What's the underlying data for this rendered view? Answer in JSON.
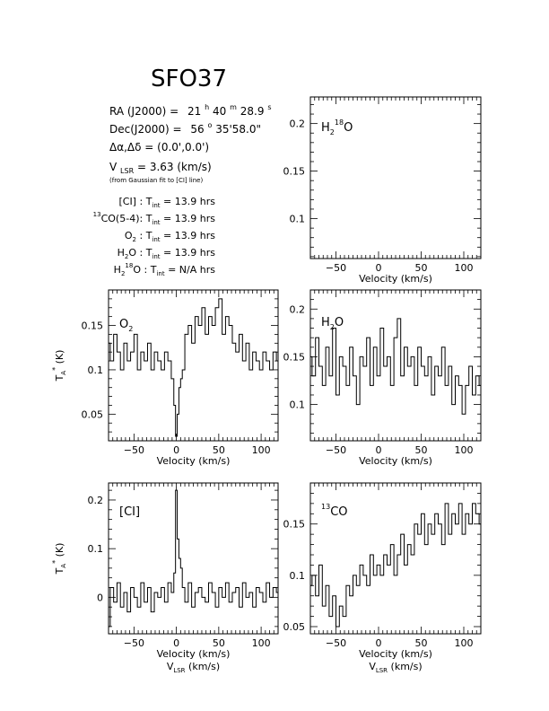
{
  "header": {
    "title": "SFO37",
    "ra": {
      "label": "RA (J2000) =",
      "h": "21",
      "hu": "h",
      "m": "40",
      "mu": "m",
      "s": "28.9",
      "su": "s"
    },
    "dec": {
      "label": "Dec(J2000) =",
      "deg": "56",
      "degu": "o",
      "rest": "35'58.0\""
    },
    "offset": {
      "text": "Δα,Δδ = (0.0',0.0')"
    },
    "vlsr": {
      "v": "V",
      "sub": "LSR",
      "rest": " = 3.63 (km/s)",
      "note": "(from Gaussian fit to [CI] line)"
    },
    "tint": [
      {
        "pre": "",
        "sup": "",
        "name": "[CI]",
        "sub": "",
        "post": " : ",
        "t": "T",
        "tsub": "int",
        "value": " = 13.9 hrs"
      },
      {
        "pre": "",
        "sup": "13",
        "name": "CO(5-4)",
        "sub": "",
        "post": ": ",
        "t": "T",
        "tsub": "int",
        "value": " = 13.9 hrs"
      },
      {
        "pre": "",
        "sup": "",
        "name": "O",
        "sub": "2",
        "post": " : ",
        "t": "T",
        "tsub": "int",
        "value": " = 13.9 hrs"
      },
      {
        "pre": "",
        "sup": "",
        "name": "H",
        "sub": "2",
        "post": "O : ",
        "t": "T",
        "tsub": "int",
        "value": " = 13.9 hrs"
      },
      {
        "pre": "H",
        "sup": "18",
        "name": "O",
        "sub": "2",
        "post": " : ",
        "t": "T",
        "tsub": "int",
        "value": " = N/A hrs"
      }
    ]
  },
  "axis_text": {
    "xlabel": "Velocity (km/s)",
    "vlsr_main": "V",
    "vlsr_sub": "LSR",
    "vlsr_rest": " (km/s)",
    "ylabel_main": "T",
    "ylabel_sub": "A",
    "ylabel_sup": "*",
    "ylabel_rest": " (K)"
  },
  "chart_data": [
    {
      "id": "h2-18o",
      "type": "line",
      "label": {
        "a": "H",
        "sub": "2",
        "sup": "18",
        "b": "O"
      },
      "xlim": [
        -80,
        120
      ],
      "ylim": [
        0.058,
        0.228
      ],
      "xticks": [
        -50,
        0,
        50,
        100
      ],
      "yticks": [
        0.1,
        0.15,
        0.2
      ],
      "ytick_labels": [
        "0.1",
        "0.15",
        "0.2"
      ],
      "x": [],
      "y": []
    },
    {
      "id": "o2",
      "type": "line",
      "label": {
        "a": "O",
        "sub": "2",
        "sup": "",
        "b": ""
      },
      "xlim": [
        -80,
        120
      ],
      "ylim": [
        0.02,
        0.19
      ],
      "xticks": [
        -50,
        0,
        50,
        100
      ],
      "yticks": [
        0.05,
        0.1,
        0.15
      ],
      "ytick_labels": [
        "0.05",
        "0.1",
        "0.15"
      ],
      "x": [
        -80,
        -76,
        -72,
        -68,
        -64,
        -60,
        -56,
        -52,
        -48,
        -44,
        -40,
        -36,
        -32,
        -28,
        -24,
        -20,
        -16,
        -12,
        -8,
        -4,
        -2,
        0,
        2,
        4,
        6,
        8,
        12,
        16,
        20,
        24,
        28,
        32,
        36,
        40,
        44,
        48,
        52,
        56,
        60,
        64,
        68,
        72,
        76,
        80,
        84,
        88,
        92,
        96,
        100,
        104,
        108,
        112,
        116,
        120
      ],
      "y": [
        0.13,
        0.11,
        0.14,
        0.12,
        0.1,
        0.13,
        0.11,
        0.12,
        0.14,
        0.1,
        0.12,
        0.11,
        0.13,
        0.1,
        0.12,
        0.11,
        0.1,
        0.12,
        0.11,
        0.09,
        0.06,
        0.025,
        0.05,
        0.08,
        0.09,
        0.1,
        0.14,
        0.15,
        0.13,
        0.16,
        0.15,
        0.17,
        0.14,
        0.16,
        0.15,
        0.17,
        0.18,
        0.14,
        0.16,
        0.15,
        0.13,
        0.12,
        0.14,
        0.11,
        0.13,
        0.1,
        0.12,
        0.11,
        0.1,
        0.12,
        0.11,
        0.1,
        0.12,
        0.11
      ]
    },
    {
      "id": "h2o",
      "type": "line",
      "label": {
        "a": "H",
        "sub": "2",
        "sup": "",
        "b": "O"
      },
      "xlim": [
        -80,
        120
      ],
      "ylim": [
        0.062,
        0.22
      ],
      "xticks": [
        -50,
        0,
        50,
        100
      ],
      "yticks": [
        0.1,
        0.15,
        0.2
      ],
      "ytick_labels": [
        "0.1",
        "0.15",
        "0.2"
      ],
      "x": [
        -80,
        -76,
        -72,
        -68,
        -64,
        -60,
        -56,
        -52,
        -48,
        -44,
        -40,
        -36,
        -32,
        -28,
        -24,
        -20,
        -16,
        -12,
        -8,
        -4,
        0,
        4,
        8,
        12,
        16,
        20,
        24,
        28,
        32,
        36,
        40,
        44,
        48,
        52,
        56,
        60,
        64,
        68,
        72,
        76,
        80,
        84,
        88,
        92,
        96,
        100,
        104,
        108,
        112,
        116,
        120
      ],
      "y": [
        0.15,
        0.13,
        0.17,
        0.14,
        0.12,
        0.16,
        0.13,
        0.18,
        0.11,
        0.15,
        0.14,
        0.12,
        0.16,
        0.13,
        0.1,
        0.15,
        0.14,
        0.17,
        0.12,
        0.16,
        0.13,
        0.18,
        0.14,
        0.15,
        0.12,
        0.17,
        0.19,
        0.13,
        0.16,
        0.14,
        0.15,
        0.12,
        0.16,
        0.14,
        0.13,
        0.15,
        0.11,
        0.14,
        0.13,
        0.16,
        0.12,
        0.14,
        0.1,
        0.13,
        0.12,
        0.09,
        0.12,
        0.14,
        0.11,
        0.13,
        0.12
      ]
    },
    {
      "id": "ci",
      "type": "line",
      "label": {
        "a": "[CI]",
        "sub": "",
        "sup": "",
        "b": ""
      },
      "xlim": [
        -80,
        120
      ],
      "ylim": [
        -0.075,
        0.235
      ],
      "xticks": [
        -50,
        0,
        50,
        100
      ],
      "yticks": [
        0,
        0.1,
        0.2
      ],
      "ytick_labels": [
        "0",
        "0.1",
        "0.2"
      ],
      "x": [
        -80,
        -76,
        -72,
        -68,
        -64,
        -60,
        -56,
        -52,
        -48,
        -44,
        -40,
        -36,
        -32,
        -28,
        -24,
        -20,
        -16,
        -12,
        -8,
        -4,
        -2,
        0,
        2,
        4,
        6,
        8,
        12,
        16,
        20,
        24,
        28,
        32,
        36,
        40,
        44,
        48,
        52,
        56,
        60,
        64,
        68,
        72,
        76,
        80,
        84,
        88,
        92,
        96,
        100,
        104,
        108,
        112,
        116,
        120
      ],
      "y": [
        -0.06,
        0.02,
        -0.01,
        0.03,
        -0.02,
        0.01,
        -0.03,
        0.02,
        0.0,
        -0.02,
        0.03,
        -0.01,
        0.02,
        -0.03,
        0.01,
        0.0,
        0.02,
        -0.01,
        0.03,
        0.01,
        0.05,
        0.22,
        0.12,
        0.08,
        0.06,
        0.02,
        -0.01,
        0.03,
        -0.02,
        0.01,
        0.02,
        0.0,
        -0.01,
        0.03,
        0.01,
        -0.02,
        0.02,
        0.0,
        0.03,
        -0.01,
        0.01,
        0.02,
        -0.02,
        0.03,
        0.0,
        0.01,
        -0.02,
        0.02,
        0.01,
        -0.01,
        0.03,
        0.0,
        0.02,
        0.01
      ]
    },
    {
      "id": "13co",
      "type": "line",
      "label": {
        "a": "",
        "sub": "",
        "sup": "13",
        "b": "CO"
      },
      "xlim": [
        -80,
        120
      ],
      "ylim": [
        0.043,
        0.19
      ],
      "xticks": [
        -50,
        0,
        50,
        100
      ],
      "yticks": [
        0.05,
        0.1,
        0.15
      ],
      "ytick_labels": [
        "0.05",
        "0.1",
        "0.15"
      ],
      "x": [
        -80,
        -76,
        -72,
        -68,
        -64,
        -60,
        -56,
        -52,
        -48,
        -44,
        -40,
        -36,
        -32,
        -28,
        -24,
        -20,
        -16,
        -12,
        -8,
        -4,
        0,
        4,
        8,
        12,
        16,
        20,
        24,
        28,
        32,
        36,
        40,
        44,
        48,
        52,
        56,
        60,
        64,
        68,
        72,
        76,
        80,
        84,
        88,
        92,
        96,
        100,
        104,
        108,
        112,
        116,
        120
      ],
      "y": [
        0.09,
        0.1,
        0.08,
        0.11,
        0.07,
        0.09,
        0.06,
        0.08,
        0.05,
        0.07,
        0.06,
        0.09,
        0.08,
        0.1,
        0.09,
        0.11,
        0.1,
        0.09,
        0.12,
        0.1,
        0.11,
        0.1,
        0.12,
        0.11,
        0.13,
        0.1,
        0.12,
        0.14,
        0.11,
        0.13,
        0.12,
        0.15,
        0.14,
        0.16,
        0.13,
        0.15,
        0.14,
        0.16,
        0.15,
        0.13,
        0.17,
        0.14,
        0.16,
        0.15,
        0.17,
        0.14,
        0.16,
        0.15,
        0.17,
        0.16,
        0.15
      ]
    }
  ]
}
